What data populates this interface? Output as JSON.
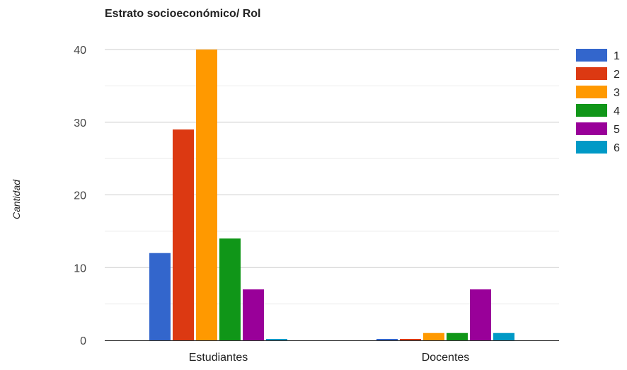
{
  "chart_data": {
    "type": "bar",
    "title": "Estrato socioeconómico/ Rol",
    "xlabel": "",
    "ylabel": "Cantidad",
    "categories": [
      "Estudiantes",
      "Docentes"
    ],
    "ylim": [
      0,
      40
    ],
    "yticks": [
      0,
      10,
      20,
      30,
      40
    ],
    "grid": true,
    "legend_position": "right",
    "series": [
      {
        "name": "1",
        "color": "#3366cc",
        "values": [
          12,
          0
        ]
      },
      {
        "name": "2",
        "color": "#dc3912",
        "values": [
          29,
          0
        ]
      },
      {
        "name": "3",
        "color": "#ff9900",
        "values": [
          40,
          1
        ]
      },
      {
        "name": "4",
        "color": "#109618",
        "values": [
          14,
          1
        ]
      },
      {
        "name": "5",
        "color": "#990099",
        "values": [
          7,
          7
        ]
      },
      {
        "name": "6",
        "color": "#0099c6",
        "values": [
          0,
          1
        ]
      }
    ]
  }
}
